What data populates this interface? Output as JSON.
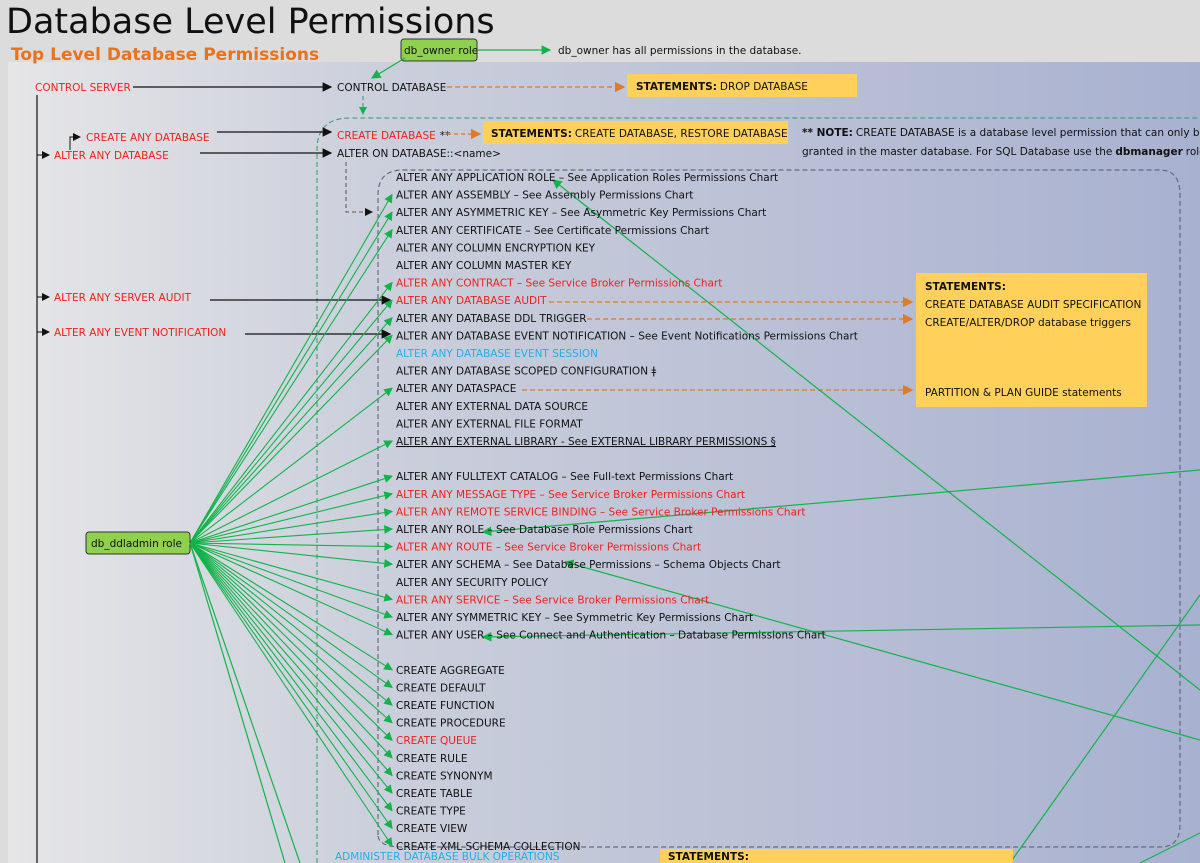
{
  "title": "Database Level Permissions",
  "subtitle": "Top Level Database Permissions",
  "colors": {
    "red": "#f0201c",
    "cyan": "#1fb0e8",
    "green_role": "#8fd14f",
    "statement_box": "#ffd05a",
    "arrow_green": "#12b34a",
    "arrow_orange": "#e07a26"
  },
  "roles": {
    "db_owner": "db_owner role",
    "db_owner_note": "db_owner has all permissions in the database.",
    "db_ddladmin": "db_ddladmin role"
  },
  "server_perms": {
    "control_server": "CONTROL SERVER",
    "create_any_database": "CREATE ANY DATABASE",
    "alter_any_database": "ALTER ANY DATABASE",
    "alter_any_server_audit": "ALTER ANY SERVER AUDIT",
    "alter_any_event_notification": "ALTER ANY EVENT NOTIFICATION"
  },
  "db_perms": {
    "control_database": "CONTROL DATABASE",
    "create_database": "CREATE DATABASE",
    "create_database_mark": "**",
    "alter_on_database": "ALTER ON DATABASE::<name>"
  },
  "statements": {
    "label": "STATEMENTS:",
    "drop": "DROP DATABASE",
    "create": "CREATE DATABASE, RESTORE DATABASE",
    "audit": "CREATE DATABASE AUDIT SPECIFICATION",
    "triggers": "CREATE/ALTER/DROP database triggers",
    "partition": "PARTITION & PLAN GUIDE statements"
  },
  "note": {
    "prefix": "** NOTE:",
    "line1": "CREATE DATABASE is a database level permission that can only be",
    "line2a": "granted in the master database. For SQL Database use the",
    "line2b": "dbmanager",
    "line2c": "role."
  },
  "items": [
    {
      "text": "ALTER ANY APPLICATION ROLE – See Application Roles Permissions Chart",
      "color": "black"
    },
    {
      "text": "ALTER ANY ASSEMBLY – See Assembly Permissions Chart",
      "color": "black"
    },
    {
      "text": "ALTER ANY ASYMMETRIC KEY – See Asymmetric Key Permissions Chart",
      "color": "black"
    },
    {
      "text": "ALTER ANY CERTIFICATE – See Certificate Permissions Chart",
      "color": "black"
    },
    {
      "text": "ALTER ANY COLUMN ENCRYPTION KEY",
      "color": "black"
    },
    {
      "text": "ALTER ANY COLUMN MASTER KEY",
      "color": "black"
    },
    {
      "text": "ALTER ANY CONTRACT – See Service Broker Permissions Chart",
      "color": "red"
    },
    {
      "text": "ALTER ANY DATABASE AUDIT",
      "color": "red"
    },
    {
      "text": "ALTER ANY DATABASE DDL TRIGGER",
      "color": "black"
    },
    {
      "text": "ALTER ANY DATABASE EVENT NOTIFICATION – See Event Notifications Permissions Chart",
      "color": "black"
    },
    {
      "text": "ALTER ANY DATABASE EVENT SESSION",
      "color": "cyan"
    },
    {
      "text": "ALTER ANY DATABASE SCOPED CONFIGURATION ǂ",
      "color": "black"
    },
    {
      "text": "ALTER ANY DATASPACE",
      "color": "black"
    },
    {
      "text": "ALTER ANY EXTERNAL DATA SOURCE",
      "color": "black"
    },
    {
      "text": "ALTER ANY EXTERNAL FILE FORMAT",
      "color": "black"
    },
    {
      "text": "ALTER ANY EXTERNAL LIBRARY - See EXTERNAL LIBRARY PERMISSIONS §",
      "color": "black",
      "underline": true
    },
    {
      "text": "ALTER ANY FULLTEXT CATALOG – See Full-text Permissions Chart",
      "color": "black"
    },
    {
      "text": "ALTER ANY MESSAGE TYPE – See Service Broker Permissions Chart",
      "color": "red"
    },
    {
      "text": "ALTER ANY REMOTE SERVICE BINDING – See Service Broker Permissions Chart",
      "color": "red"
    },
    {
      "text": "ALTER ANY ROLE – See Database Role Permissions Chart",
      "color": "black"
    },
    {
      "text": "ALTER ANY ROUTE – See Service Broker Permissions Chart",
      "color": "red"
    },
    {
      "text": "ALTER ANY SCHEMA – See Database Permissions – Schema Objects Chart",
      "color": "black"
    },
    {
      "text": "ALTER ANY SECURITY POLICY",
      "color": "black"
    },
    {
      "text": "ALTER ANY SERVICE – See Service Broker Permissions Chart",
      "color": "red"
    },
    {
      "text": "ALTER ANY SYMMETRIC KEY – See Symmetric Key Permissions Chart",
      "color": "black"
    },
    {
      "text": "ALTER ANY USER – See Connect and Authentication – Database Permissions Chart",
      "color": "black"
    },
    {
      "text": "CREATE AGGREGATE",
      "color": "black"
    },
    {
      "text": "CREATE DEFAULT",
      "color": "black"
    },
    {
      "text": "CREATE FUNCTION",
      "color": "black"
    },
    {
      "text": "CREATE PROCEDURE",
      "color": "black"
    },
    {
      "text": "CREATE QUEUE",
      "color": "red"
    },
    {
      "text": "CREATE RULE",
      "color": "black"
    },
    {
      "text": "CREATE SYNONYM",
      "color": "black"
    },
    {
      "text": "CREATE TABLE",
      "color": "black"
    },
    {
      "text": "CREATE TYPE",
      "color": "black"
    },
    {
      "text": "CREATE VIEW",
      "color": "black"
    },
    {
      "text": "CREATE XML SCHEMA COLLECTION",
      "color": "black"
    }
  ],
  "bottom": {
    "administer_bulk": "ADMINISTER DATABASE BULK OPERATIONS",
    "statements_label": "STATEMENTS:"
  }
}
